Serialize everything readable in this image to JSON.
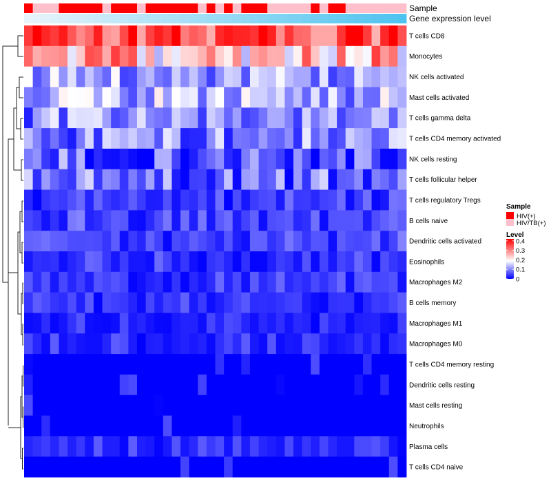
{
  "chart_data": {
    "type": "heatmap",
    "title": "",
    "rows": [
      "T cells CD8",
      "Monocytes",
      "NK cells activated",
      "Mast cells activated",
      "T cells gamma delta",
      "T cells CD4 memory activated",
      "NK cells resting",
      "T cells follicular helper",
      "T cells regulatory  Tregs",
      "B cells naive",
      "Dendritic cells activated",
      "Eosinophils",
      "Macrophages M2",
      "B cells memory",
      "Macrophages M1",
      "Macrophages M0",
      "T cells CD4 memory resting",
      "Dendritic cells resting",
      "Mast cells resting",
      "Neutrophils",
      "Plasma cells",
      "T cells CD4 naive"
    ],
    "row_means": [
      0.36,
      0.25,
      0.12,
      0.13,
      0.1,
      0.1,
      0.07,
      0.08,
      0.04,
      0.05,
      0.05,
      0.03,
      0.03,
      0.03,
      0.02,
      0.02,
      0.01,
      0.01,
      0.0,
      0.0,
      0.02,
      0.0
    ],
    "n_columns": 44,
    "sample_annotation": {
      "label": "Sample",
      "values": [
        "HIV(+)",
        "HIV/TB(+)",
        "HIV/TB(+)",
        "HIV/TB(+)",
        "HIV(+)",
        "HIV(+)",
        "HIV(+)",
        "HIV(+)",
        "HIV(+)",
        "HIV/TB(+)",
        "HIV(+)",
        "HIV(+)",
        "HIV(+)",
        "HIV/TB(+)",
        "HIV(+)",
        "HIV(+)",
        "HIV(+)",
        "HIV(+)",
        "HIV(+)",
        "HIV(+)",
        "HIV/TB(+)",
        "HIV(+)",
        "HIV/TB(+)",
        "HIV(+)",
        "HIV/TB(+)",
        "HIV(+)",
        "HIV(+)",
        "HIV(+)",
        "HIV/TB(+)",
        "HIV/TB(+)",
        "HIV/TB(+)",
        "HIV/TB(+)",
        "HIV/TB(+)",
        "HIV(+)",
        "HIV/TB(+)",
        "HIV(+)",
        "HIV(+)",
        "HIV/TB(+)",
        "HIV/TB(+)",
        "HIV/TB(+)",
        "HIV/TB(+)",
        "HIV/TB(+)",
        "HIV/TB(+)",
        "HIV/TB(+)"
      ]
    },
    "expression_annotation": {
      "label": "Gene expression level",
      "gradient": [
        "#e8f4fb",
        "#4fc3ef"
      ]
    },
    "legends": {
      "sample": {
        "title": "Sample",
        "entries": [
          {
            "label": "HIV(+)",
            "color": "#ff0000"
          },
          {
            "label": "HIV/TB(+)",
            "color": "#ffc0cb"
          }
        ]
      },
      "level": {
        "title": "Level",
        "ticks": [
          "0.4",
          "0.3",
          "0.2",
          "0.1",
          "0"
        ],
        "tick_values": [
          0.4,
          0.3,
          0.2,
          0.1,
          0
        ],
        "range": [
          0,
          0.42
        ],
        "colors": [
          "#0000ff",
          "#ffffff",
          "#ff0000"
        ]
      }
    },
    "xlabel": "",
    "ylabel": ""
  }
}
